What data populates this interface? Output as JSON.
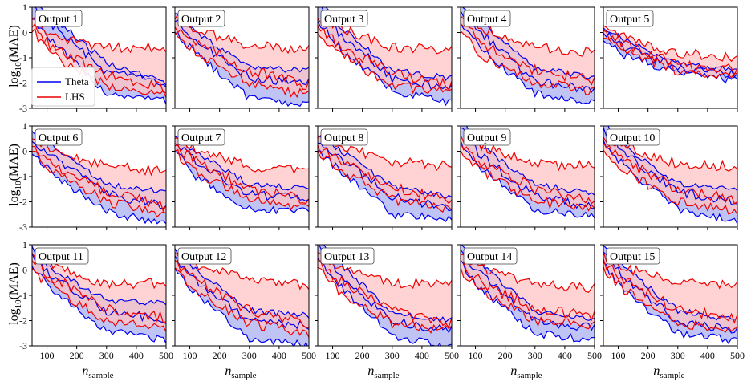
{
  "figure": {
    "ylabel_main": "log",
    "ylabel_sub": "10",
    "ylabel_rest": "(MAE)",
    "xlabel_main": "n",
    "xlabel_sub": "sample"
  },
  "legend": [
    {
      "label": "Theta",
      "color": "#0000ee"
    },
    {
      "label": "LHS",
      "color": "#ee0000"
    }
  ],
  "chart_data": {
    "type": "line",
    "x_range": [
      50,
      500
    ],
    "x": [
      50,
      60,
      70,
      80,
      90,
      100,
      110,
      120,
      130,
      140,
      150,
      160,
      170,
      180,
      190,
      200,
      210,
      220,
      230,
      240,
      250,
      260,
      270,
      280,
      290,
      300,
      310,
      320,
      330,
      340,
      350,
      360,
      370,
      380,
      390,
      400,
      410,
      420,
      430,
      440,
      450,
      460,
      470,
      480,
      490,
      500
    ],
    "y_range": [
      -3,
      1
    ],
    "x_ticks": [
      100,
      200,
      300,
      400,
      500
    ],
    "y_ticks": [
      1,
      0,
      -1,
      -2,
      -3
    ],
    "series_style": {
      "Theta": {
        "line": "#0000ee",
        "fill": "#aab0f2"
      },
      "LHS": {
        "line": "#ee0000",
        "fill": "#ffc4c4"
      }
    },
    "panels": [
      {
        "title": "Output 1",
        "theta": {
          "upper": [
            1.3,
            0.6,
            -1.2,
            -2.0
          ],
          "mid": [
            1.1,
            0.3,
            -1.6,
            -2.0
          ],
          "lower": [
            0.6,
            -0.4,
            -2.4,
            -2.7
          ]
        },
        "lhs": {
          "upper": [
            0.6,
            -0.2,
            -0.6,
            -0.6
          ],
          "mid": [
            0.3,
            -0.6,
            -1.7,
            -2.2
          ],
          "lower": [
            0.1,
            -0.9,
            -2.1,
            -2.4
          ]
        }
      },
      {
        "title": "Output 2",
        "theta": {
          "upper": [
            0.8,
            0.0,
            -1.4,
            -1.5
          ],
          "mid": [
            0.5,
            -0.3,
            -1.8,
            -2.0
          ],
          "lower": [
            0.0,
            -0.8,
            -2.6,
            -2.9
          ]
        },
        "lhs": {
          "upper": [
            0.6,
            0.1,
            -0.5,
            -0.7
          ],
          "mid": [
            0.3,
            -0.4,
            -1.5,
            -2.1
          ],
          "lower": [
            0.1,
            -0.8,
            -2.0,
            -2.5
          ]
        }
      },
      {
        "title": "Output 3",
        "theta": {
          "upper": [
            1.3,
            0.3,
            -1.5,
            -1.8
          ],
          "mid": [
            1.1,
            0.0,
            -1.8,
            -2.2
          ],
          "lower": [
            0.5,
            -0.6,
            -2.3,
            -2.8
          ]
        },
        "lhs": {
          "upper": [
            0.6,
            0.2,
            -0.6,
            -0.7
          ],
          "mid": [
            0.3,
            -0.5,
            -1.6,
            -2.1
          ],
          "lower": [
            0.0,
            -0.8,
            -2.1,
            -2.4
          ]
        }
      },
      {
        "title": "Output 4",
        "theta": {
          "upper": [
            1.2,
            0.4,
            -1.4,
            -1.8
          ],
          "mid": [
            0.9,
            0.0,
            -1.9,
            -2.3
          ],
          "lower": [
            0.4,
            -0.7,
            -2.4,
            -2.8
          ]
        },
        "lhs": {
          "upper": [
            0.7,
            0.2,
            -0.6,
            -0.8
          ],
          "mid": [
            0.4,
            -0.4,
            -1.5,
            -1.9
          ],
          "lower": [
            0.1,
            -0.9,
            -2.0,
            -2.3
          ]
        }
      },
      {
        "title": "Output 5",
        "theta": {
          "upper": [
            0.2,
            -0.3,
            -1.2,
            -1.5
          ],
          "mid": [
            0.0,
            -0.6,
            -1.4,
            -1.7
          ],
          "lower": [
            -0.3,
            -0.9,
            -1.6,
            -1.9
          ]
        },
        "lhs": {
          "upper": [
            0.3,
            -0.2,
            -0.8,
            -1.0
          ],
          "mid": [
            0.1,
            -0.5,
            -1.3,
            -1.5
          ],
          "lower": [
            -0.2,
            -0.8,
            -1.5,
            -1.7
          ]
        }
      },
      {
        "title": "Output 6",
        "theta": {
          "upper": [
            0.8,
            0.2,
            -1.3,
            -1.6
          ],
          "mid": [
            0.4,
            -0.2,
            -1.7,
            -2.2
          ],
          "lower": [
            -0.1,
            -0.9,
            -2.4,
            -2.9
          ]
        },
        "lhs": {
          "upper": [
            0.5,
            0.0,
            -0.6,
            -0.8
          ],
          "mid": [
            0.2,
            -0.5,
            -1.6,
            -2.2
          ],
          "lower": [
            0.0,
            -0.8,
            -2.0,
            -2.5
          ]
        }
      },
      {
        "title": "Output 7",
        "theta": {
          "upper": [
            0.6,
            0.0,
            -1.3,
            -1.5
          ],
          "mid": [
            0.3,
            -0.4,
            -1.7,
            -1.9
          ],
          "lower": [
            0.0,
            -1.0,
            -2.3,
            -2.4
          ]
        },
        "lhs": {
          "upper": [
            0.5,
            0.1,
            -0.6,
            -0.7
          ],
          "mid": [
            0.2,
            -0.4,
            -1.5,
            -1.9
          ],
          "lower": [
            0.0,
            -0.8,
            -1.9,
            -2.2
          ]
        }
      },
      {
        "title": "Output 8",
        "theta": {
          "upper": [
            0.6,
            0.1,
            -1.4,
            -1.8
          ],
          "mid": [
            0.3,
            -0.2,
            -1.8,
            -2.3
          ],
          "lower": [
            0.0,
            -0.7,
            -2.5,
            -2.7
          ]
        },
        "lhs": {
          "upper": [
            0.5,
            0.2,
            -0.4,
            -0.6
          ],
          "mid": [
            0.2,
            -0.3,
            -1.4,
            -1.9
          ],
          "lower": [
            0.0,
            -0.7,
            -1.9,
            -2.3
          ]
        }
      },
      {
        "title": "Output 9",
        "theta": {
          "upper": [
            1.2,
            0.2,
            -1.3,
            -1.7
          ],
          "mid": [
            0.9,
            -0.2,
            -1.8,
            -2.2
          ],
          "lower": [
            0.4,
            -0.7,
            -2.3,
            -2.6
          ]
        },
        "lhs": {
          "upper": [
            0.6,
            0.2,
            -0.5,
            -0.6
          ],
          "mid": [
            0.3,
            -0.4,
            -1.5,
            -1.9
          ],
          "lower": [
            0.0,
            -0.8,
            -2.0,
            -2.2
          ]
        }
      },
      {
        "title": "Output 10",
        "theta": {
          "upper": [
            1.3,
            0.2,
            -1.3,
            -1.5
          ],
          "mid": [
            0.9,
            -0.1,
            -1.6,
            -2.0
          ],
          "lower": [
            0.4,
            -0.6,
            -2.3,
            -2.8
          ]
        },
        "lhs": {
          "upper": [
            0.5,
            0.2,
            -0.5,
            -0.6
          ],
          "mid": [
            0.3,
            -0.4,
            -1.5,
            -1.9
          ],
          "lower": [
            0.0,
            -0.8,
            -2.0,
            -2.4
          ]
        }
      },
      {
        "title": "Output 11",
        "theta": {
          "upper": [
            0.9,
            0.0,
            -1.2,
            -1.3
          ],
          "mid": [
            0.6,
            -0.3,
            -1.6,
            -2.0
          ],
          "lower": [
            0.1,
            -0.8,
            -2.4,
            -2.8
          ]
        },
        "lhs": {
          "upper": [
            0.6,
            0.2,
            -0.6,
            -0.5
          ],
          "mid": [
            0.3,
            -0.3,
            -1.5,
            -1.9
          ],
          "lower": [
            0.0,
            -0.7,
            -2.0,
            -2.3
          ]
        }
      },
      {
        "title": "Output 12",
        "theta": {
          "upper": [
            0.8,
            0.0,
            -1.6,
            -1.8
          ],
          "mid": [
            0.5,
            -0.4,
            -2.0,
            -2.2
          ],
          "lower": [
            0.0,
            -0.9,
            -2.7,
            -3.0
          ]
        },
        "lhs": {
          "upper": [
            0.6,
            0.2,
            -0.4,
            -0.6
          ],
          "mid": [
            0.3,
            -0.4,
            -1.6,
            -2.1
          ],
          "lower": [
            0.0,
            -0.8,
            -2.1,
            -2.5
          ]
        }
      },
      {
        "title": "Output 13",
        "theta": {
          "upper": [
            1.3,
            0.3,
            -1.7,
            -2.0
          ],
          "mid": [
            1.0,
            -0.1,
            -2.0,
            -2.4
          ],
          "lower": [
            0.4,
            -0.6,
            -2.6,
            -3.1
          ]
        },
        "lhs": {
          "upper": [
            0.6,
            0.2,
            -0.5,
            -0.6
          ],
          "mid": [
            0.3,
            -0.4,
            -1.6,
            -2.1
          ],
          "lower": [
            0.0,
            -0.8,
            -2.1,
            -2.4
          ]
        }
      },
      {
        "title": "Output 14",
        "theta": {
          "upper": [
            1.0,
            0.2,
            -1.6,
            -2.0
          ],
          "mid": [
            0.7,
            -0.2,
            -2.0,
            -2.3
          ],
          "lower": [
            0.3,
            -0.8,
            -2.5,
            -2.8
          ]
        },
        "lhs": {
          "upper": [
            0.5,
            0.1,
            -0.6,
            -0.7
          ],
          "mid": [
            0.2,
            -0.5,
            -1.5,
            -1.8
          ],
          "lower": [
            0.0,
            -0.8,
            -2.0,
            -2.2
          ]
        }
      },
      {
        "title": "Output 15",
        "theta": {
          "upper": [
            0.9,
            0.1,
            -1.6,
            -2.0
          ],
          "mid": [
            0.6,
            -0.3,
            -2.0,
            -2.4
          ],
          "lower": [
            0.2,
            -0.8,
            -2.5,
            -2.8
          ]
        },
        "lhs": {
          "upper": [
            0.6,
            0.1,
            -0.5,
            -0.6
          ],
          "mid": [
            0.3,
            -0.4,
            -1.6,
            -1.9
          ],
          "lower": [
            0.0,
            -0.8,
            -2.1,
            -2.4
          ]
        }
      }
    ]
  }
}
